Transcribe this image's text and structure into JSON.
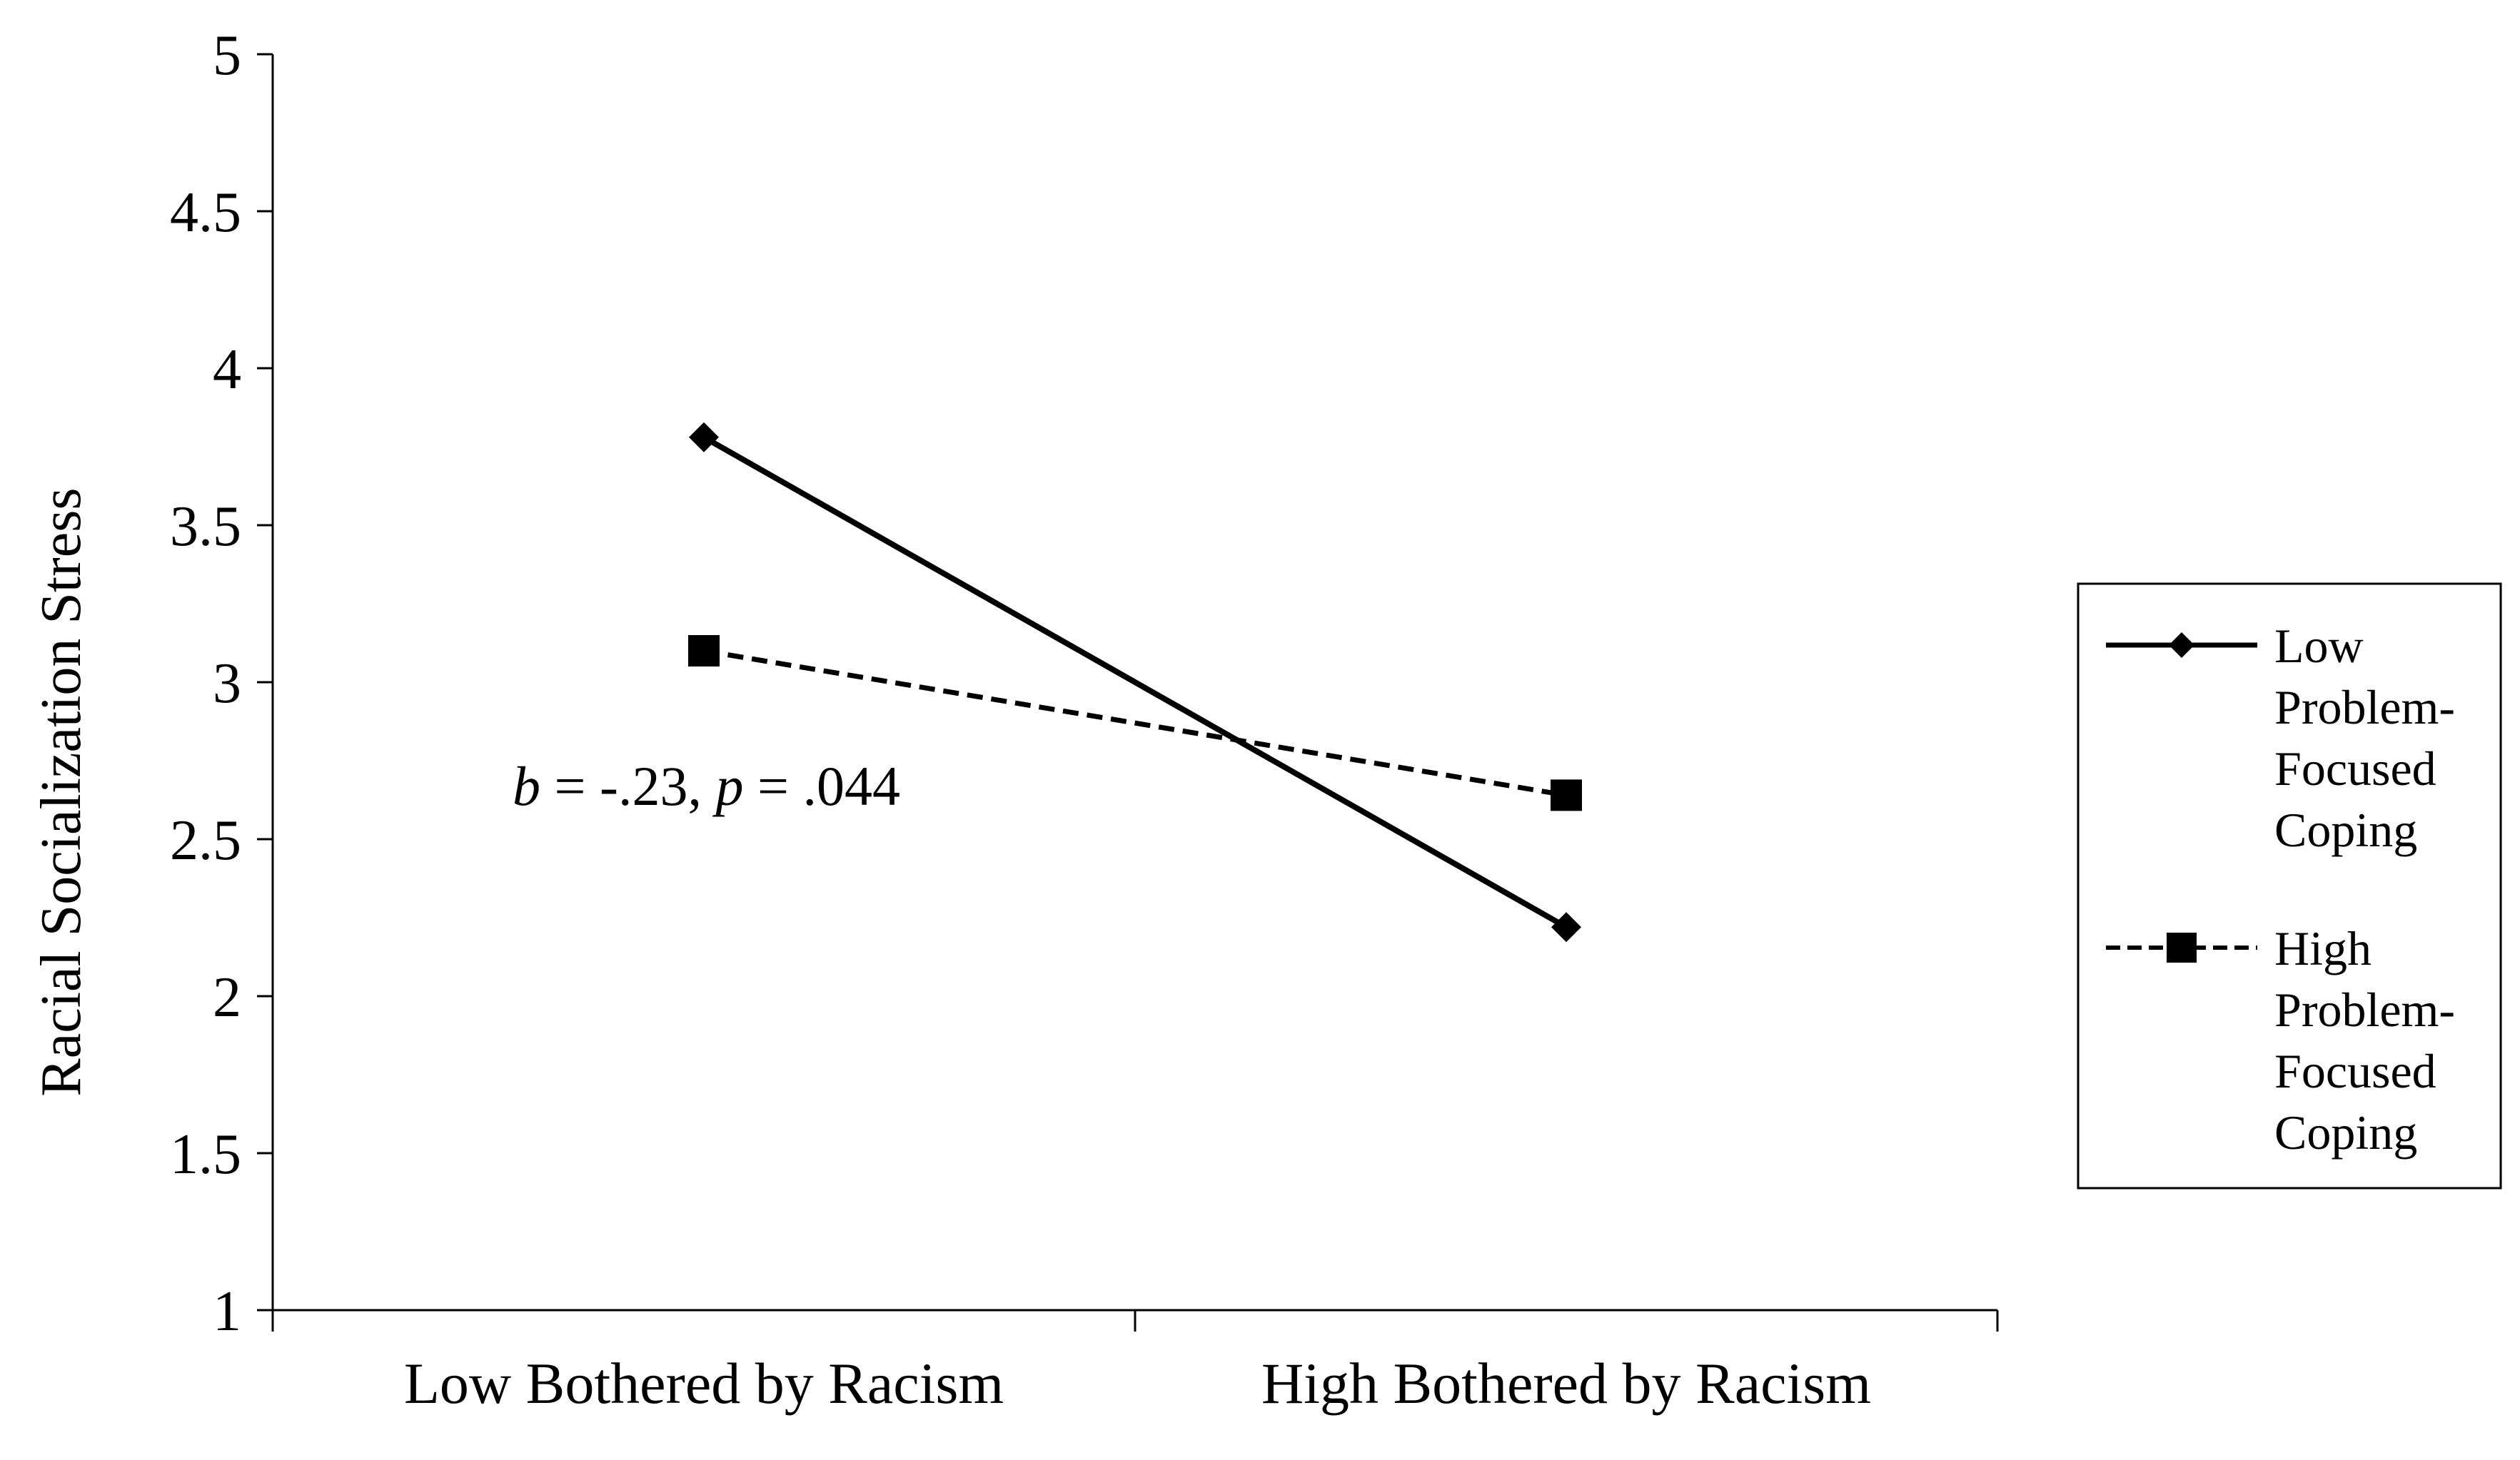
{
  "chart_data": {
    "type": "line",
    "ylabel": "Racial Socialization Stress",
    "xlabel": "",
    "ylim": [
      1,
      5
    ],
    "yticks": [
      "1",
      "1.5",
      "2",
      "2.5",
      "3",
      "3.5",
      "4",
      "4.5",
      "5"
    ],
    "categories": [
      "Low Bothered by Racism",
      "High Bothered by Racism"
    ],
    "series": [
      {
        "name": "Low Problem-Focused Coping",
        "legend_lines": [
          "Low",
          "Problem-",
          "Focused",
          "Coping"
        ],
        "values": [
          3.78,
          2.22
        ],
        "style": "solid",
        "marker": "diamond",
        "color": "#000000"
      },
      {
        "name": "High Problem-Focused Coping",
        "legend_lines": [
          "High",
          "Problem-",
          "Focused",
          "Coping"
        ],
        "values": [
          3.1,
          2.64
        ],
        "style": "dashed",
        "marker": "square",
        "color": "#000000"
      }
    ],
    "annotation": {
      "b_symbol": "b",
      "b_value": " = -.23, ",
      "p_symbol": "p",
      "p_value": " = .044"
    },
    "legend_position": "right",
    "grid": false
  }
}
